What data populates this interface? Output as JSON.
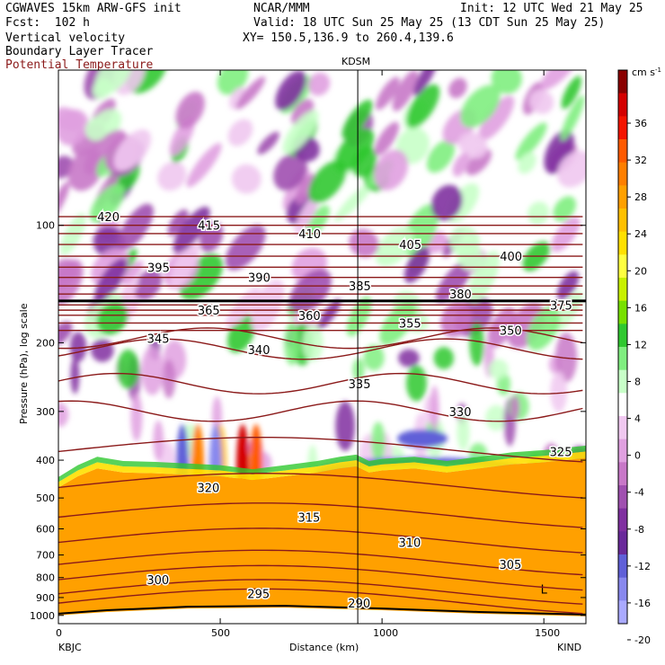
{
  "header": {
    "model": "CGWAVES 15km ARW-GFS init",
    "org": "NCAR/MMM",
    "init": "Init: 12 UTC Wed 21 May 25",
    "fcst": "Fcst:  102 h",
    "valid": "Valid: 18 UTC Sun 25 May 25 (13 CDT Sun 25 May 25)",
    "field1": "Vertical velocity",
    "field2": "Boundary Layer Tracer",
    "field3": "Potential Temperature",
    "xy": "XY= 150.5,136.9 to 260.4,139.6"
  },
  "colors": {
    "theta": "#8b1a1a",
    "boundary_layer": "#000000"
  },
  "chart_data": {
    "type": "heatmap",
    "title": "",
    "xlabel": "Distance (km)",
    "ylabel": "Pressure (hPa), log scale",
    "xlim": [
      0,
      1630
    ],
    "ylim": [
      1050,
      40
    ],
    "yscale": "log",
    "x_ticks": [
      0,
      500,
      1000,
      1500
    ],
    "y_ticks": [
      100,
      200,
      300,
      400,
      500,
      600,
      700,
      800,
      900,
      1000
    ],
    "x_endpoint_labels": [
      "KBJC",
      "KIND"
    ],
    "marker": {
      "label": "KDSM",
      "x": 925
    },
    "colorbar": {
      "unit_label": "cm s",
      "unit_exponent": "-1",
      "ticks": [
        36,
        32,
        28,
        24,
        20,
        16,
        12,
        8,
        4,
        0,
        -4,
        -8,
        -12,
        -16,
        -20
      ],
      "colors": [
        "#8a0000",
        "#d40000",
        "#f41400",
        "#ff5a00",
        "#ff7f00",
        "#ffa000",
        "#ffc000",
        "#ffe000",
        "#ffff40",
        "#c8f000",
        "#78e000",
        "#30c830",
        "#80ee80",
        "#c8ffc8",
        "#ffffff",
        "#f0c8f0",
        "#e0a0e0",
        "#c878c8",
        "#a050b0",
        "#8030a0",
        "#6a2a9a",
        "#6060d8",
        "#8888ee",
        "#aaaaff"
      ]
    },
    "theta_contours": [
      {
        "label": "420",
        "level": 420
      },
      {
        "label": "415",
        "level": 415
      },
      {
        "label": "410",
        "level": 410
      },
      {
        "label": "405",
        "level": 405
      },
      {
        "label": "400",
        "level": 400
      },
      {
        "label": "395",
        "level": 395
      },
      {
        "label": "390",
        "level": 390
      },
      {
        "label": "385",
        "level": 385
      },
      {
        "label": "380",
        "level": 380
      },
      {
        "label": "375",
        "level": 375
      },
      {
        "label": "365",
        "level": 365
      },
      {
        "label": "360",
        "level": 360
      },
      {
        "label": "355",
        "level": 355
      },
      {
        "label": "350",
        "level": 350
      },
      {
        "label": "345",
        "level": 345
      },
      {
        "label": "340",
        "level": 340
      },
      {
        "label": "335",
        "level": 335
      },
      {
        "label": "330",
        "level": 330
      },
      {
        "label": "325",
        "level": 325
      },
      {
        "label": "320",
        "level": 320
      },
      {
        "label": "315",
        "level": 315
      },
      {
        "label": "310",
        "level": 310
      },
      {
        "label": "305",
        "level": 305
      },
      {
        "label": "300",
        "level": 300
      },
      {
        "label": "295",
        "level": 295
      },
      {
        "label": "290",
        "level": 290
      }
    ],
    "boundary_layer_label": "L"
  }
}
